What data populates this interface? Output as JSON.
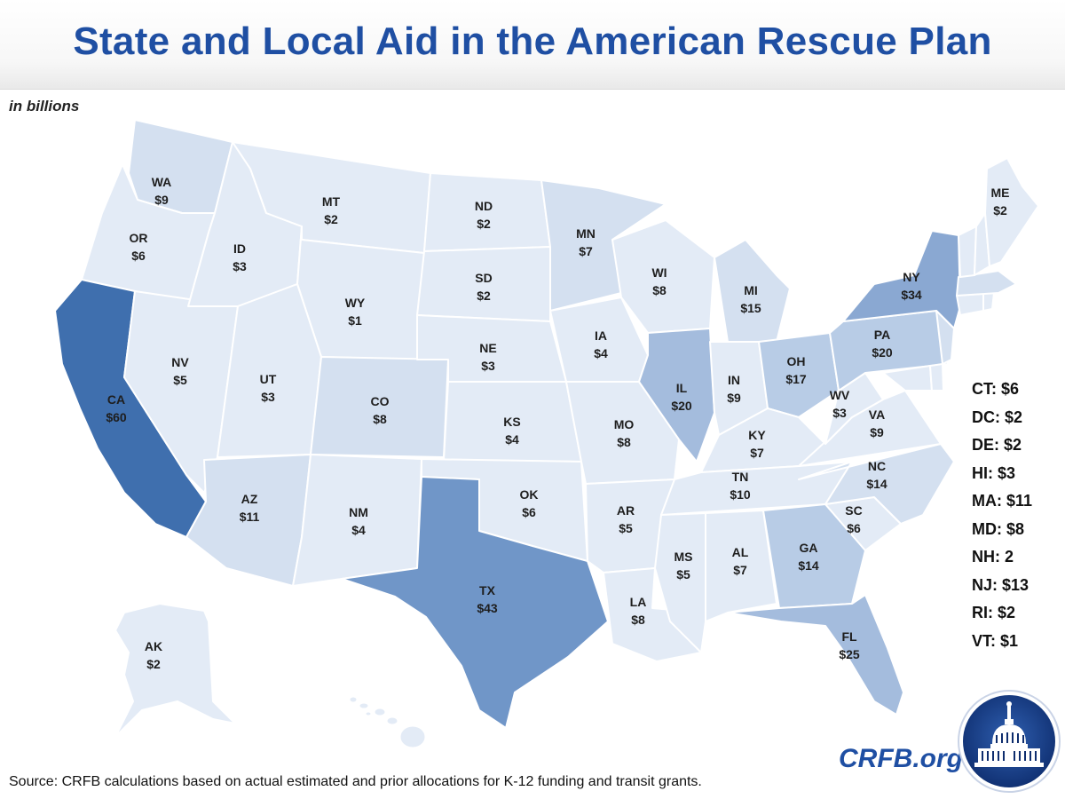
{
  "title": "State and Local Aid in the American Rescue Plan",
  "units": "in billions",
  "source": "Source: CRFB calculations based on actual estimated and prior allocations for K-12 funding and transit grants.",
  "site": "CRFB.org",
  "logo_icon": "capitol-dome-seal-icon",
  "colors": {
    "title": "#1f4fa3",
    "tier1": "#e3ebf6",
    "tier2": "#d4e0f0",
    "tier3": "#b8cce6",
    "tier4": "#a4bcdd",
    "tier5": "#8aa8d2",
    "tier6": "#7096c8",
    "tier7": "#3f6fae"
  },
  "states": [
    {
      "abbr": "WA",
      "value": "$9"
    },
    {
      "abbr": "OR",
      "value": "$6"
    },
    {
      "abbr": "CA",
      "value": "$60"
    },
    {
      "abbr": "NV",
      "value": "$5"
    },
    {
      "abbr": "ID",
      "value": "$3"
    },
    {
      "abbr": "MT",
      "value": "$2"
    },
    {
      "abbr": "WY",
      "value": "$1"
    },
    {
      "abbr": "UT",
      "value": "$3"
    },
    {
      "abbr": "AZ",
      "value": "$11"
    },
    {
      "abbr": "CO",
      "value": "$8"
    },
    {
      "abbr": "NM",
      "value": "$4"
    },
    {
      "abbr": "ND",
      "value": "$2"
    },
    {
      "abbr": "SD",
      "value": "$2"
    },
    {
      "abbr": "NE",
      "value": "$3"
    },
    {
      "abbr": "KS",
      "value": "$4"
    },
    {
      "abbr": "OK",
      "value": "$6"
    },
    {
      "abbr": "TX",
      "value": "$43"
    },
    {
      "abbr": "MN",
      "value": "$7"
    },
    {
      "abbr": "IA",
      "value": "$4"
    },
    {
      "abbr": "MO",
      "value": "$8"
    },
    {
      "abbr": "AR",
      "value": "$5"
    },
    {
      "abbr": "LA",
      "value": "$8"
    },
    {
      "abbr": "WI",
      "value": "$8"
    },
    {
      "abbr": "IL",
      "value": "$20"
    },
    {
      "abbr": "MI",
      "value": "$15"
    },
    {
      "abbr": "IN",
      "value": "$9"
    },
    {
      "abbr": "OH",
      "value": "$17"
    },
    {
      "abbr": "KY",
      "value": "$7"
    },
    {
      "abbr": "TN",
      "value": "$10"
    },
    {
      "abbr": "MS",
      "value": "$5"
    },
    {
      "abbr": "AL",
      "value": "$7"
    },
    {
      "abbr": "GA",
      "value": "$14"
    },
    {
      "abbr": "FL",
      "value": "$25"
    },
    {
      "abbr": "SC",
      "value": "$6"
    },
    {
      "abbr": "NC",
      "value": "$14"
    },
    {
      "abbr": "VA",
      "value": "$9"
    },
    {
      "abbr": "WV",
      "value": "$3"
    },
    {
      "abbr": "PA",
      "value": "$20"
    },
    {
      "abbr": "NY",
      "value": "$34"
    },
    {
      "abbr": "ME",
      "value": "$2"
    },
    {
      "abbr": "AK",
      "value": "$2"
    }
  ],
  "small_states": [
    {
      "abbr": "CT",
      "text": "CT: $6"
    },
    {
      "abbr": "DC",
      "text": "DC: $2"
    },
    {
      "abbr": "DE",
      "text": "DE: $2"
    },
    {
      "abbr": "HI",
      "text": "HI: $3"
    },
    {
      "abbr": "MA",
      "text": "MA: $11"
    },
    {
      "abbr": "MD",
      "text": "MD: $8"
    },
    {
      "abbr": "NH",
      "text": "NH: 2"
    },
    {
      "abbr": "NJ",
      "text": "NJ: $13"
    },
    {
      "abbr": "RI",
      "text": "RI: $2"
    },
    {
      "abbr": "VT",
      "text": "VT: $1"
    }
  ]
}
